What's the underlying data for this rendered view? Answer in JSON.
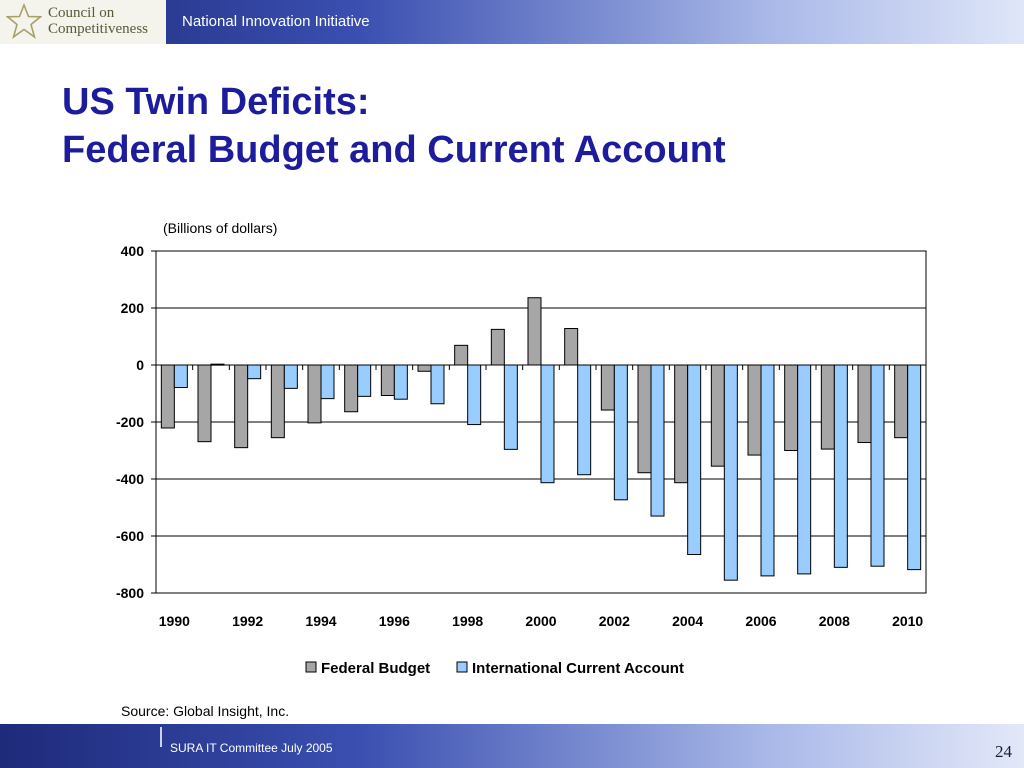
{
  "header": {
    "logo_line1": "Council on",
    "logo_line2": "Competitiveness",
    "initiative": "National Innovation Initiative"
  },
  "slide": {
    "title_line1": "US Twin Deficits:",
    "title_line2": "Federal Budget and Current Account"
  },
  "chart_data": {
    "type": "bar",
    "unit_note": "(Billions of dollars)",
    "categories": [
      "1990",
      "1991",
      "1992",
      "1993",
      "1994",
      "1995",
      "1996",
      "1997",
      "1998",
      "1999",
      "2000",
      "2001",
      "2002",
      "2003",
      "2004",
      "2005",
      "2006",
      "2007",
      "2008",
      "2009",
      "2010"
    ],
    "tick_labels": [
      "1990",
      "1992",
      "1994",
      "1996",
      "1998",
      "2000",
      "2002",
      "2004",
      "2006",
      "2008",
      "2010"
    ],
    "series": [
      {
        "name": "Federal Budget",
        "color": "#a6a6a6",
        "values": [
          -221,
          -269,
          -290,
          -255,
          -203,
          -164,
          -107,
          -22,
          69,
          125,
          236,
          128,
          -158,
          -378,
          -413,
          -355,
          -316,
          -300,
          -295,
          -272,
          -255
        ]
      },
      {
        "name": "International Current Account",
        "color": "#99ccff",
        "values": [
          -79,
          3,
          -48,
          -82,
          -118,
          -110,
          -120,
          -136,
          -209,
          -296,
          -413,
          -385,
          -473,
          -530,
          -665,
          -755,
          -740,
          -733,
          -710,
          -706,
          -718
        ]
      }
    ],
    "ylim": [
      -800,
      400
    ],
    "yticks": [
      400,
      200,
      0,
      -200,
      -400,
      -600,
      -800
    ],
    "grid": true,
    "legend": "bottom-center",
    "source": "Source:  Global Insight, Inc."
  },
  "footer": {
    "text": "SURA  IT Committee July 2005",
    "page": "24"
  }
}
